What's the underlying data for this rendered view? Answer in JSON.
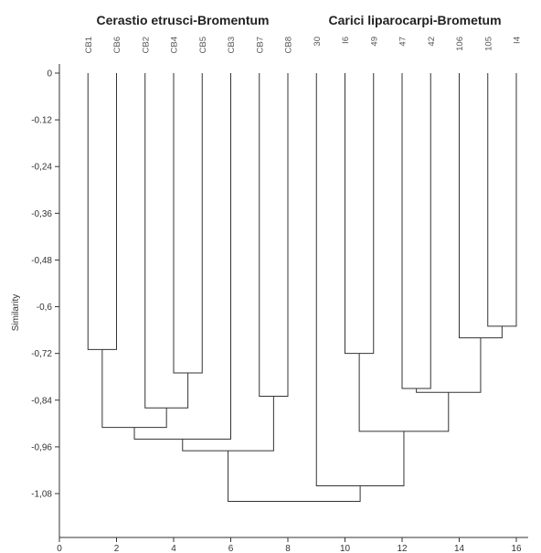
{
  "chart_data": {
    "type": "dendrogram",
    "group_labels": [
      "Cerastio etrusci-Bromentum",
      "Carici liparocarpi-Brometum"
    ],
    "ylabel": "Similarity",
    "xlabel": "",
    "xlim": [
      0,
      17
    ],
    "ylim": [
      -1.2,
      0
    ],
    "xticks": [
      "0",
      "2",
      "4",
      "6",
      "8",
      "10",
      "12",
      "14",
      "16"
    ],
    "yticks": [
      "0",
      "-0.12",
      "-0,24",
      "-0,36",
      "-0,48",
      "-0,6",
      "-0,72",
      "-0,84",
      "-0,96",
      "-1,08"
    ],
    "leaves": [
      {
        "label": "CB1",
        "x": 1
      },
      {
        "label": "CB6",
        "x": 2
      },
      {
        "label": "CB2",
        "x": 3
      },
      {
        "label": "CB4",
        "x": 4
      },
      {
        "label": "CB5",
        "x": 5
      },
      {
        "label": "CB3",
        "x": 6
      },
      {
        "label": "CB7",
        "x": 7
      },
      {
        "label": "CB8",
        "x": 8
      },
      {
        "label": "30",
        "x": 9
      },
      {
        "label": "I6",
        "x": 10
      },
      {
        "label": "49",
        "x": 11
      },
      {
        "label": "47",
        "x": 12
      },
      {
        "label": "42",
        "x": 13
      },
      {
        "label": "106",
        "x": 14
      },
      {
        "label": "105",
        "x": 15
      },
      {
        "label": "I4",
        "x": 16
      }
    ],
    "merges": [
      {
        "id": "A",
        "left": "CB1",
        "right": "CB6",
        "similarity": -0.71
      },
      {
        "id": "B",
        "left": "CB4",
        "right": "CB5",
        "similarity": -0.77
      },
      {
        "id": "C",
        "left": "CB2",
        "right": "B",
        "similarity": -0.86
      },
      {
        "id": "D",
        "left": "A",
        "right": "C",
        "similarity": -0.91
      },
      {
        "id": "E",
        "left": "D",
        "right": "CB3",
        "similarity": -0.94
      },
      {
        "id": "F",
        "left": "CB7",
        "right": "CB8",
        "similarity": -0.83
      },
      {
        "id": "G",
        "left": "E",
        "right": "F",
        "similarity": -0.97
      },
      {
        "id": "H",
        "left": "I6",
        "right": "49",
        "similarity": -0.72
      },
      {
        "id": "I",
        "left": "105",
        "right": "I4",
        "similarity": -0.65
      },
      {
        "id": "J",
        "left": "106",
        "right": "I",
        "similarity": -0.68
      },
      {
        "id": "K",
        "left": "47",
        "right": "42",
        "similarity": -0.81
      },
      {
        "id": "L",
        "left": "K",
        "right": "J",
        "similarity": -0.82
      },
      {
        "id": "M",
        "left": "H",
        "right": "L",
        "similarity": -0.92
      },
      {
        "id": "N",
        "left": "30",
        "right": "M",
        "similarity": -1.06
      },
      {
        "id": "O",
        "left": "G",
        "right": "N",
        "similarity": -1.1
      }
    ]
  }
}
